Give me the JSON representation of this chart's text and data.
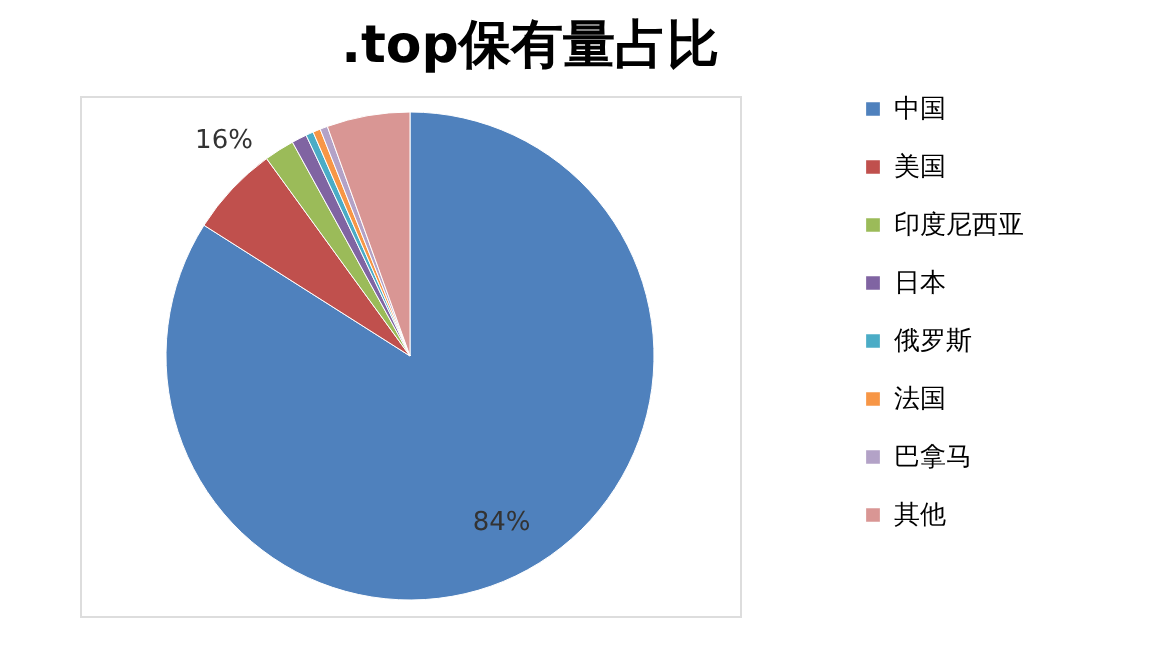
{
  "chart_data": {
    "type": "pie",
    "title": ".top保有量占比",
    "categories": [
      "中国",
      "美国",
      "印度尼西亚",
      "日本",
      "俄罗斯",
      "法国",
      "巴拿马",
      "其他"
    ],
    "values": [
      84,
      6,
      2,
      1,
      0.5,
      0.5,
      0.5,
      5.5
    ],
    "colors": [
      "#4f81bd",
      "#c0504d",
      "#9bbb59",
      "#8064a2",
      "#4bacc6",
      "#f79646",
      "#b3a2c7",
      "#d99694"
    ],
    "value_labels": [
      "84%",
      null,
      null,
      null,
      null,
      null,
      null,
      null
    ],
    "annotations": [
      "16%"
    ],
    "legend": "right"
  }
}
